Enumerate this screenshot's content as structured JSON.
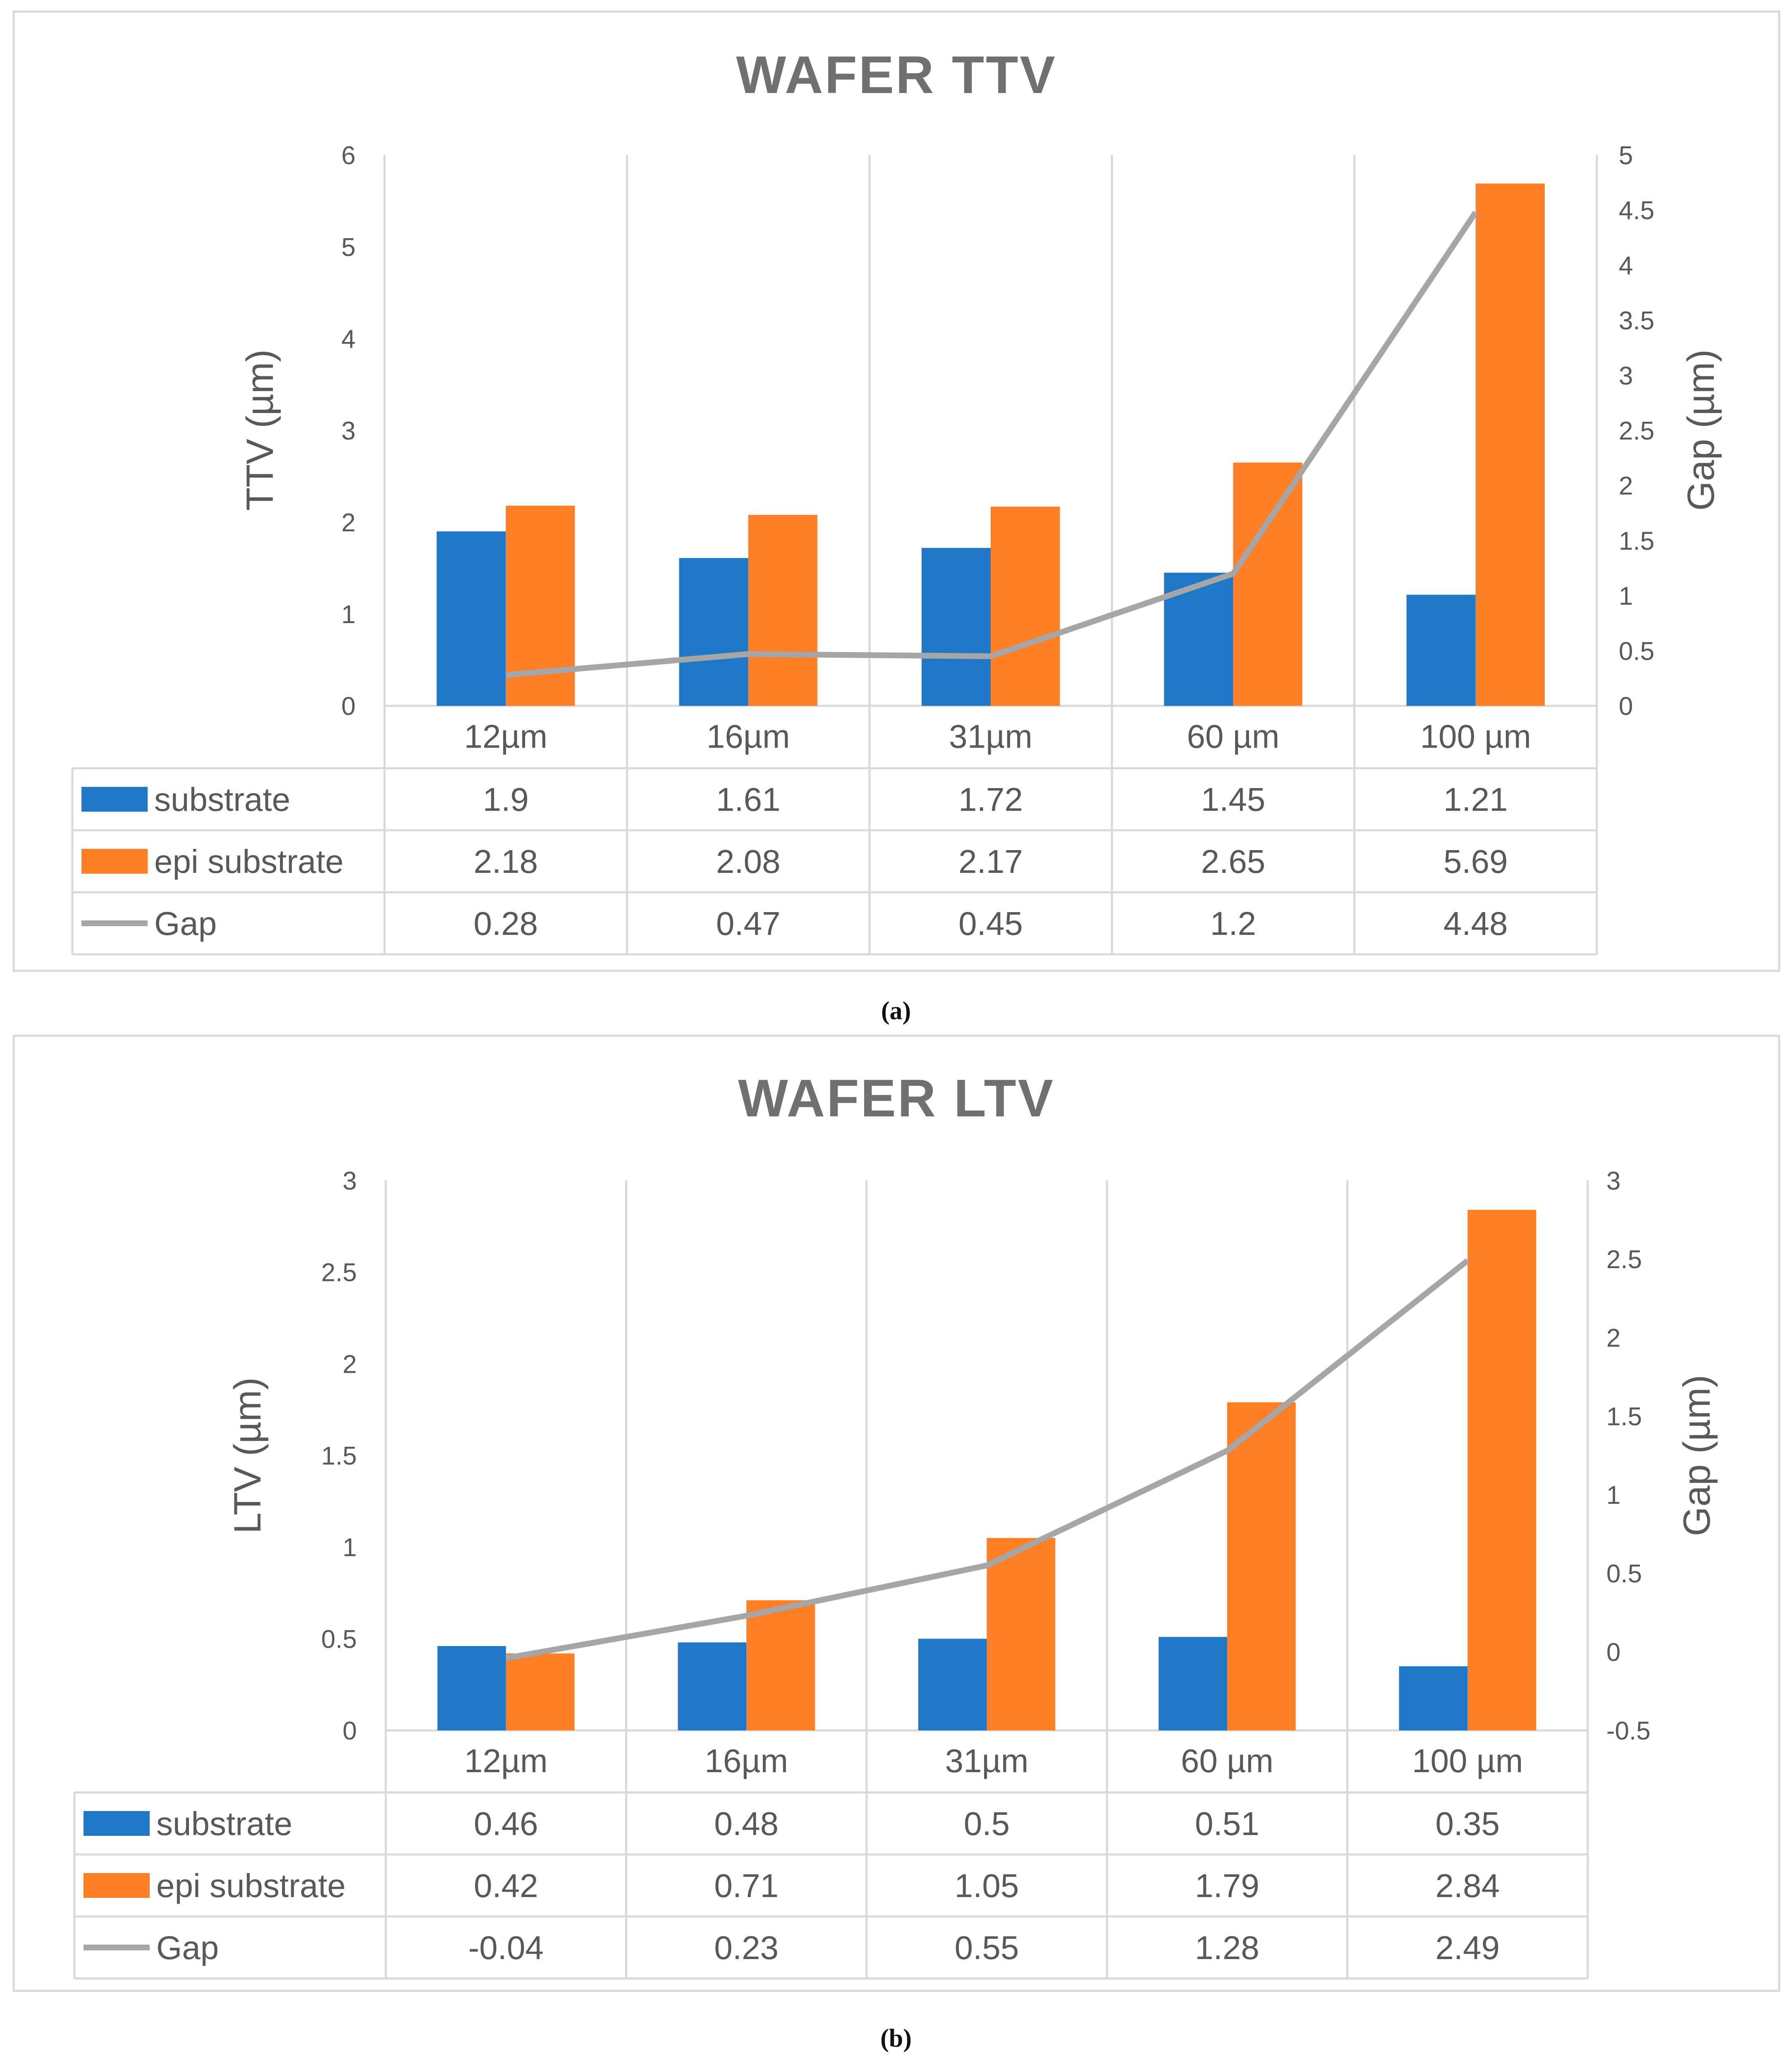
{
  "chart_data": [
    {
      "type": "bar",
      "title": "WAFER TTV",
      "panel_label": "(a)",
      "categories": [
        "12µm",
        "16µm",
        "31µm",
        "60 µm",
        "100 µm"
      ],
      "ylabel": "TTV (µm)",
      "y2label": "Gap (µm)",
      "ylim": [
        0,
        6
      ],
      "yticks": [
        "0",
        "1",
        "2",
        "3",
        "4",
        "5",
        "6"
      ],
      "y2lim": [
        0,
        5
      ],
      "y2ticks": [
        "0",
        "0.5",
        "1",
        "1.5",
        "2",
        "2.5",
        "3",
        "3.5",
        "4",
        "4.5",
        "5"
      ],
      "grid": "vertical",
      "series": [
        {
          "name": "substrate",
          "kind": "bar",
          "axis": "left",
          "color": "#1F77C8",
          "values": [
            1.9,
            1.61,
            1.72,
            1.45,
            1.21
          ],
          "labels": [
            "1.9",
            "1.61",
            "1.72",
            "1.45",
            "1.21"
          ]
        },
        {
          "name": "epi substrate",
          "kind": "bar",
          "axis": "left",
          "color": "#FF7F27",
          "values": [
            2.18,
            2.08,
            2.17,
            2.65,
            5.69
          ],
          "labels": [
            "2.18",
            "2.08",
            "2.17",
            "2.65",
            "5.69"
          ]
        },
        {
          "name": "Gap",
          "kind": "line",
          "axis": "right",
          "color": "#A6A6A6",
          "values": [
            0.28,
            0.47,
            0.45,
            1.2,
            4.48
          ],
          "labels": [
            "0.28",
            "0.47",
            "0.45",
            "1.2",
            "4.48"
          ]
        }
      ]
    },
    {
      "type": "bar",
      "title": "WAFER LTV",
      "panel_label": "(b)",
      "categories": [
        "12µm",
        "16µm",
        "31µm",
        "60 µm",
        "100 µm"
      ],
      "ylabel": "LTV (µm)",
      "y2label": "Gap (µm)",
      "ylim": [
        0,
        3
      ],
      "yticks": [
        "0",
        "0.5",
        "1",
        "1.5",
        "2",
        "2.5",
        "3"
      ],
      "y2lim": [
        -0.5,
        3
      ],
      "y2ticks": [
        "-0.5",
        "0",
        "0.5",
        "1",
        "1.5",
        "2",
        "2.5",
        "3"
      ],
      "grid": "vertical",
      "series": [
        {
          "name": "substrate",
          "kind": "bar",
          "axis": "left",
          "color": "#1F77C8",
          "values": [
            0.46,
            0.48,
            0.5,
            0.51,
            0.35
          ],
          "labels": [
            "0.46",
            "0.48",
            "0.5",
            "0.51",
            "0.35"
          ]
        },
        {
          "name": "epi substrate",
          "kind": "bar",
          "axis": "left",
          "color": "#FF7F27",
          "values": [
            0.42,
            0.71,
            1.05,
            1.79,
            2.84
          ],
          "labels": [
            "0.42",
            "0.71",
            "1.05",
            "1.79",
            "2.84"
          ]
        },
        {
          "name": "Gap",
          "kind": "line",
          "axis": "right",
          "color": "#A6A6A6",
          "values": [
            -0.04,
            0.23,
            0.55,
            1.28,
            2.49
          ],
          "labels": [
            "-0.04",
            "0.23",
            "0.55",
            "1.28",
            "2.49"
          ]
        }
      ]
    }
  ]
}
